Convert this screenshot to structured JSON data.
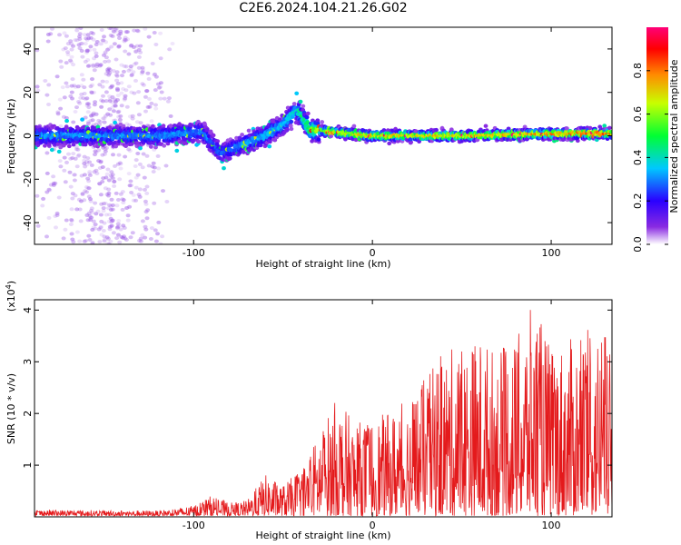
{
  "title": "C2E6.2024.104.21.26.G02",
  "colors": {
    "snr_line": "#e41a1c",
    "axis": "#000000"
  },
  "chart_data": [
    {
      "type": "heatmap",
      "xlabel": "Height of straight line (km)",
      "ylabel": "Frequency (Hz)",
      "xlim": [
        -189,
        134
      ],
      "ylim": [
        -50,
        50
      ],
      "xticks": [
        -100,
        0,
        100
      ],
      "yticks": [
        -40,
        -20,
        0,
        20,
        40
      ],
      "colorbar": {
        "label": "Normalized spectral amplitude",
        "range": [
          0,
          1
        ],
        "ticks": [
          "0.0",
          "0.2",
          "0.4",
          "0.6",
          "0.8"
        ],
        "colormap": "rainbow (purple → blue → cyan → green → yellow → red → magenta)"
      },
      "ridge": {
        "description": "main spectral ridge centred near 0 Hz",
        "x": [
          -189,
          -120,
          -95,
          -85,
          -75,
          -60,
          -50,
          -42,
          -35,
          -25,
          0,
          50,
          100,
          134
        ],
        "y": [
          0,
          0,
          2,
          -8,
          -5,
          0,
          5,
          12,
          3,
          2,
          0,
          0,
          1,
          1
        ],
        "amplitude": [
          0.3,
          0.3,
          0.3,
          0.25,
          0.3,
          0.35,
          0.35,
          0.4,
          0.55,
          0.65,
          0.7,
          0.72,
          0.75,
          0.8
        ]
      },
      "scatter_band": {
        "x_range": [
          -170,
          -130
        ],
        "y_range": [
          -50,
          50
        ],
        "amplitude": 0.05
      }
    },
    {
      "type": "line",
      "xlabel": "Height of straight line (km)",
      "ylabel": "SNR (10 * v/v)",
      "scale_label": "(x10",
      "scale_exp": "4",
      "xlim": [
        -189,
        134
      ],
      "ylim": [
        0,
        4.2
      ],
      "xticks": [
        -100,
        0,
        100
      ],
      "yticks": [
        1,
        2,
        3,
        4
      ],
      "series": [
        {
          "envelope_x": [
            -189,
            -120,
            -100,
            -90,
            -80,
            -70,
            -60,
            -50,
            -40,
            -30,
            -20,
            -10,
            0,
            10,
            20,
            30,
            40,
            50,
            60,
            70,
            80,
            90,
            100,
            110,
            120,
            130,
            134
          ],
          "envelope_y": [
            0.12,
            0.1,
            0.2,
            0.4,
            0.25,
            0.3,
            0.8,
            0.6,
            0.9,
            1.6,
            2.3,
            1.8,
            1.9,
            2.0,
            2.3,
            2.7,
            3.2,
            3.3,
            3.5,
            3.2,
            3.4,
            4.1,
            3.3,
            3.4,
            3.6,
            3.6,
            3.0
          ],
          "floor_y": 0.02
        }
      ]
    }
  ]
}
